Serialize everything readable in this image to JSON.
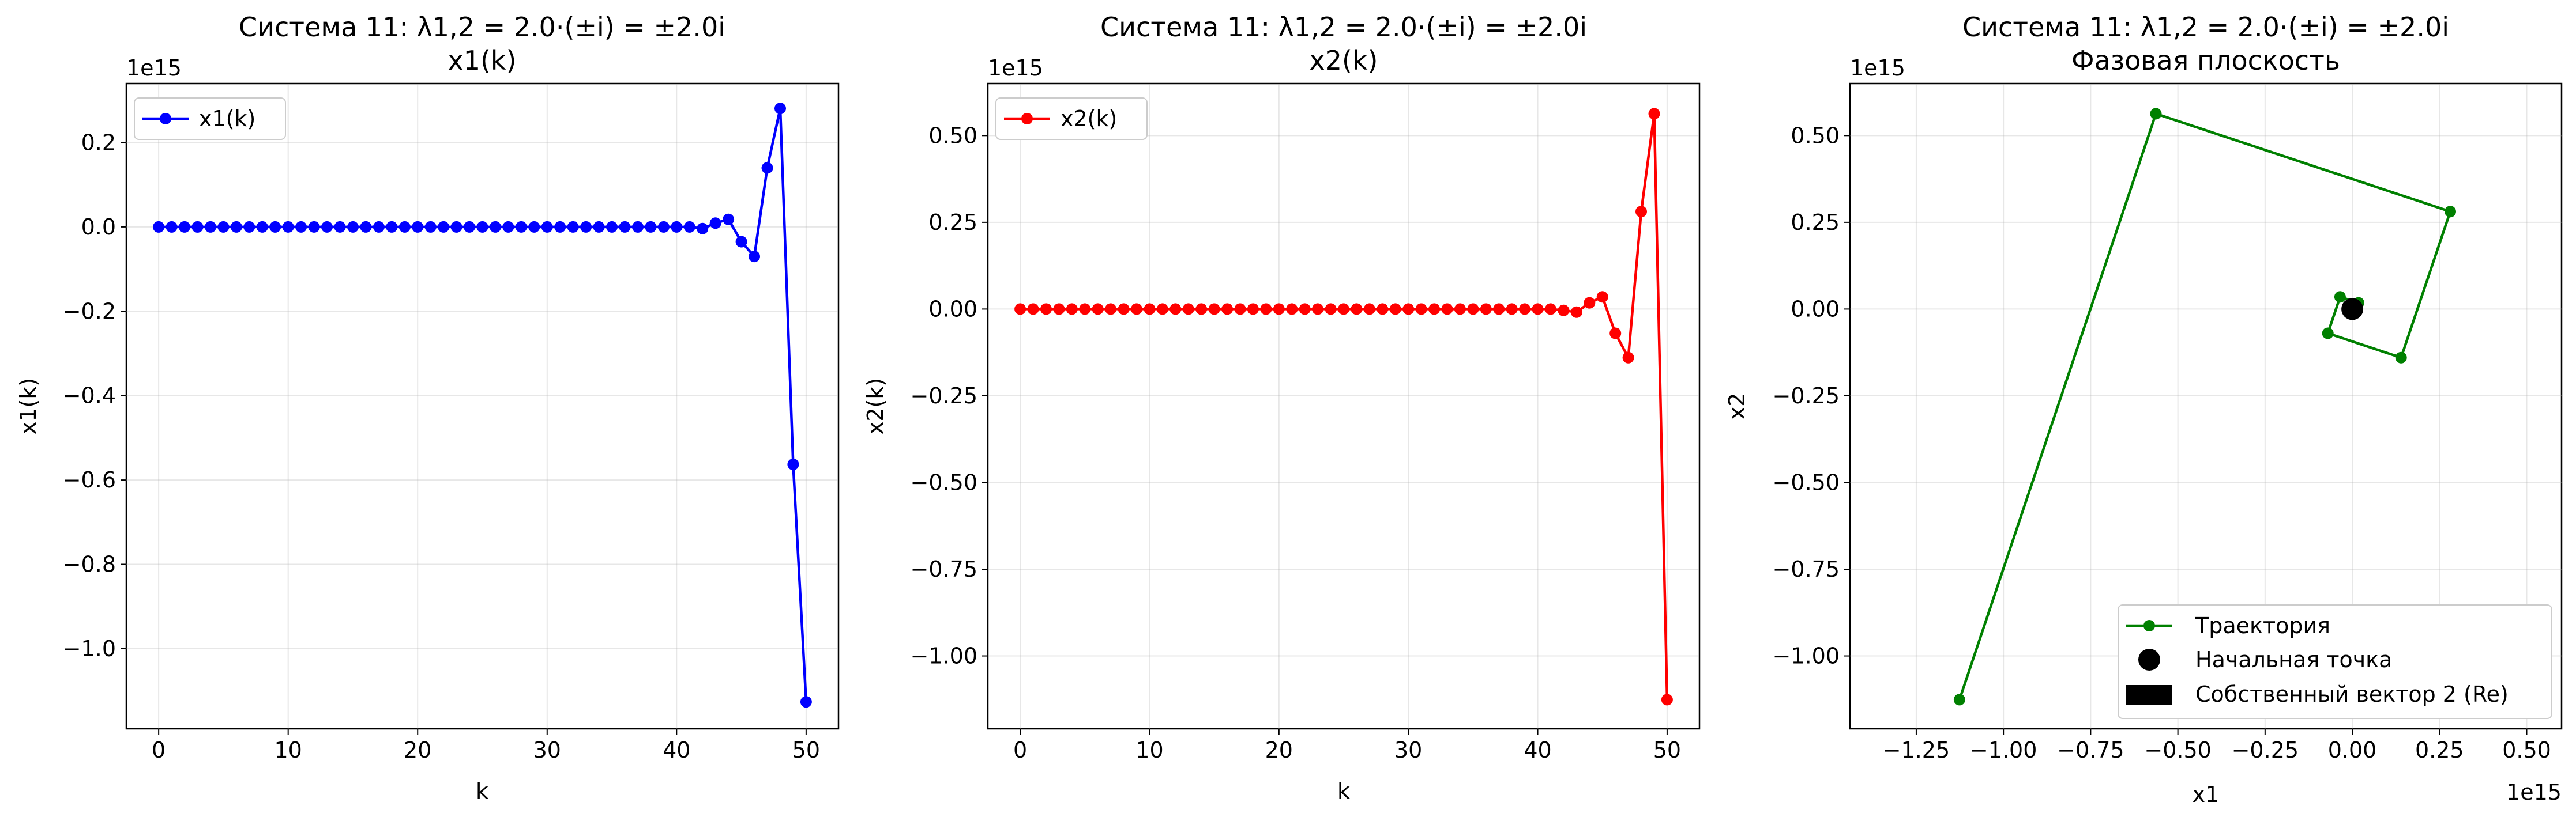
{
  "chart_data": [
    {
      "type": "line",
      "title": "Система 11: λ1,2 = 2.0·(±i) = ±2.0i",
      "subtitle": "x1(k)",
      "xlabel": "k",
      "ylabel": "x1(k)",
      "offset_label": "1e15",
      "xlim": [
        -2.5,
        52.5
      ],
      "ylim": [
        -1.19,
        0.34
      ],
      "xticks": [
        0,
        10,
        20,
        30,
        40,
        50
      ],
      "xtick_labels": [
        "0",
        "10",
        "20",
        "30",
        "40",
        "50"
      ],
      "yticks": [
        0.2,
        0.0,
        -0.2,
        -0.4,
        -0.6,
        -0.8,
        -1.0
      ],
      "ytick_labels": [
        "0.2",
        "0.0",
        "−0.2",
        "−0.4",
        "−0.6",
        "−0.8",
        "−1.0"
      ],
      "grid": true,
      "legend_position": "upper left",
      "series": [
        {
          "name": "x1(k)",
          "color": "#0000ff",
          "marker": "circle",
          "x": [
            0,
            1,
            2,
            3,
            4,
            5,
            6,
            7,
            8,
            9,
            10,
            11,
            12,
            13,
            14,
            15,
            16,
            17,
            18,
            19,
            20,
            21,
            22,
            23,
            24,
            25,
            26,
            27,
            28,
            29,
            30,
            31,
            32,
            33,
            34,
            35,
            36,
            37,
            38,
            39,
            40,
            41,
            42,
            43,
            44,
            45,
            46,
            47,
            48,
            49,
            50
          ],
          "values": [
            0,
            0,
            0,
            0,
            0,
            0,
            0,
            0,
            0,
            0,
            0,
            0,
            0,
            0,
            0,
            0,
            0,
            0,
            0,
            0,
            0,
            0,
            0,
            0,
            0,
            0,
            0,
            0,
            0,
            0,
            0,
            0,
            0,
            0,
            0,
            0,
            0,
            0,
            0,
            0,
            0,
            0,
            -0.004,
            0.009,
            0.018,
            -0.035,
            -0.07,
            0.14,
            0.281,
            -0.563,
            -1.126
          ]
        }
      ]
    },
    {
      "type": "line",
      "title": "Система 11: λ1,2 = 2.0·(±i) = ±2.0i",
      "subtitle": "x2(k)",
      "xlabel": "k",
      "ylabel": "x2(k)",
      "offset_label": "1e15",
      "xlim": [
        -2.5,
        52.5
      ],
      "ylim": [
        -1.21,
        0.65
      ],
      "xticks": [
        0,
        10,
        20,
        30,
        40,
        50
      ],
      "xtick_labels": [
        "0",
        "10",
        "20",
        "30",
        "40",
        "50"
      ],
      "yticks": [
        0.5,
        0.25,
        0.0,
        -0.25,
        -0.5,
        -0.75,
        -1.0
      ],
      "ytick_labels": [
        "0.50",
        "0.25",
        "0.00",
        "−0.25",
        "−0.50",
        "−0.75",
        "−1.00"
      ],
      "grid": true,
      "legend_position": "upper left",
      "series": [
        {
          "name": "x2(k)",
          "color": "#ff0000",
          "marker": "circle",
          "x": [
            0,
            1,
            2,
            3,
            4,
            5,
            6,
            7,
            8,
            9,
            10,
            11,
            12,
            13,
            14,
            15,
            16,
            17,
            18,
            19,
            20,
            21,
            22,
            23,
            24,
            25,
            26,
            27,
            28,
            29,
            30,
            31,
            32,
            33,
            34,
            35,
            36,
            37,
            38,
            39,
            40,
            41,
            42,
            43,
            44,
            45,
            46,
            47,
            48,
            49,
            50
          ],
          "values": [
            0,
            0,
            0,
            0,
            0,
            0,
            0,
            0,
            0,
            0,
            0,
            0,
            0,
            0,
            0,
            0,
            0,
            0,
            0,
            0,
            0,
            0,
            0,
            0,
            0,
            0,
            0,
            0,
            0,
            0,
            0,
            0,
            0,
            0,
            0,
            0,
            0,
            0,
            0,
            0,
            0,
            0,
            -0.004,
            -0.009,
            0.018,
            0.035,
            -0.07,
            -0.14,
            0.281,
            0.563,
            -1.126
          ]
        }
      ]
    },
    {
      "type": "scatter",
      "title": "Система 11: λ1,2 = 2.0·(±i) = ±2.0i",
      "subtitle": "Фазовая плоскость",
      "xlabel": "x1",
      "ylabel": "x2",
      "x_offset_label": "1e15",
      "y_offset_label": "1e15",
      "xlim": [
        -1.44,
        0.6
      ],
      "ylim": [
        -1.21,
        0.65
      ],
      "xticks": [
        -1.25,
        -1.0,
        -0.75,
        -0.5,
        -0.25,
        0.0,
        0.25,
        0.5
      ],
      "xtick_labels": [
        "−1.25",
        "−1.00",
        "−0.75",
        "−0.50",
        "−0.25",
        "0.00",
        "0.25",
        "0.50"
      ],
      "yticks": [
        0.5,
        0.25,
        0.0,
        -0.25,
        -0.5,
        -0.75,
        -1.0
      ],
      "ytick_labels": [
        "0.50",
        "0.25",
        "0.00",
        "−0.25",
        "−0.50",
        "−0.75",
        "−1.00"
      ],
      "grid": true,
      "legend_position": "lower right",
      "series": [
        {
          "name": "Траектория",
          "color": "#008000",
          "marker": "circle",
          "points": [
            [
              0,
              0
            ],
            [
              0,
              0
            ],
            [
              0,
              0
            ],
            [
              -0.004,
              -0.004
            ],
            [
              0.009,
              -0.009
            ],
            [
              0.018,
              0.018
            ],
            [
              -0.035,
              0.035
            ],
            [
              -0.07,
              -0.07
            ],
            [
              0.14,
              -0.14
            ],
            [
              0.281,
              0.281
            ],
            [
              -0.563,
              0.563
            ],
            [
              -1.126,
              -1.126
            ]
          ]
        },
        {
          "name": "Начальная точка",
          "color": "#000000",
          "marker": "big-circle",
          "points": [
            [
              0,
              0
            ]
          ]
        },
        {
          "name": "Собственный вектор 2 (Re)",
          "color": "#000000",
          "marker": "arrow",
          "points": [
            [
              0,
              0
            ]
          ]
        }
      ]
    }
  ]
}
